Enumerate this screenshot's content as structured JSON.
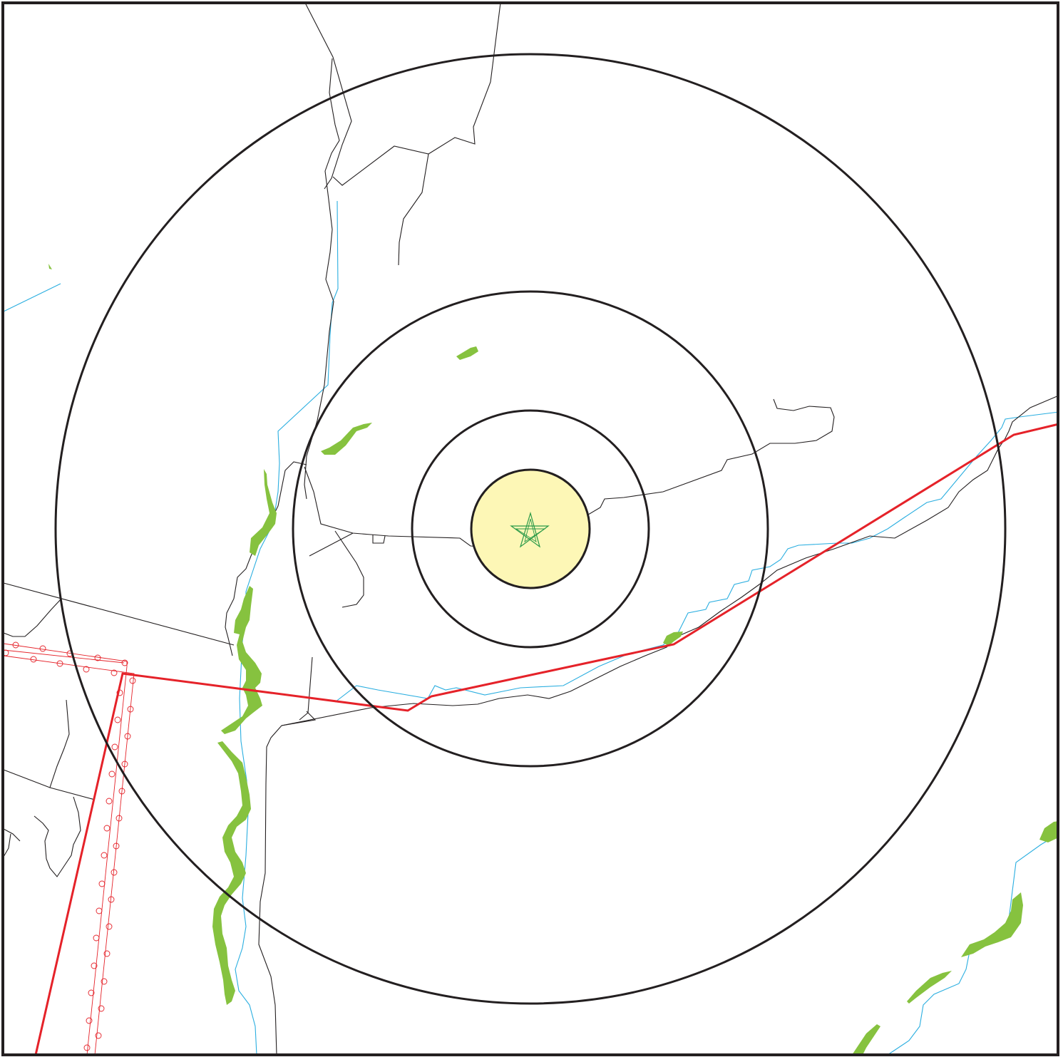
{
  "map": {
    "colors": {
      "background": "#ffffff",
      "frame": "#231f20",
      "ring": "#231f20",
      "center_fill": "#fdf7b6",
      "road": "#231f20",
      "stream": "#2aaee0",
      "pipeline": "#e52229",
      "pipeline_marker": "#e52229",
      "vegetation": "#86c23f",
      "site_marker": "#2a9a48"
    },
    "layers": [
      "buffer-rings",
      "roads",
      "streams",
      "pipelines",
      "vegetation",
      "site-marker"
    ],
    "icons": {
      "site": "star-icon",
      "pipeline_marker": "circle-marker-icon"
    }
  }
}
